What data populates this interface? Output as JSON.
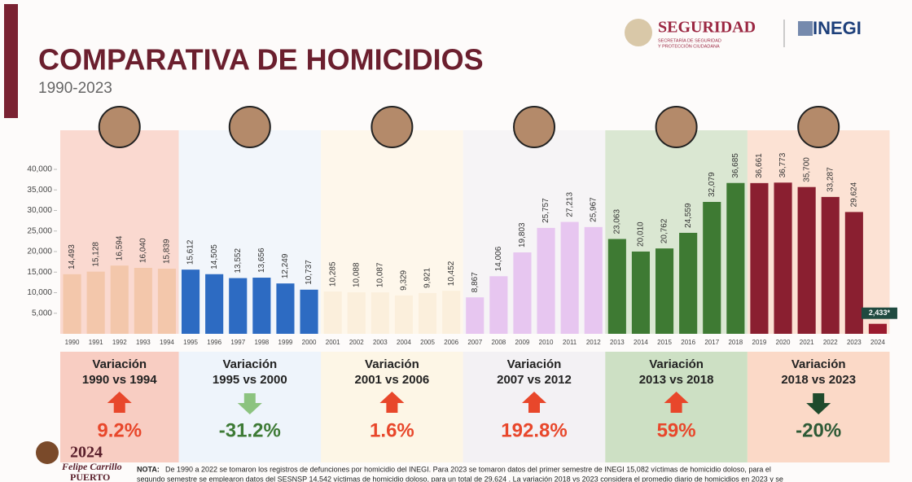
{
  "header": {
    "title": "COMPARATIVA DE HOMICIDIOS",
    "subtitle": "1990-2023",
    "logo_1": "SEGURIDAD",
    "logo_1_sub": [
      "SECRETARÍA DE SEGURIDAD",
      "Y PROTECCIÓN CIUDADANA"
    ],
    "logo_2": "INEGI"
  },
  "chart_data": {
    "type": "bar",
    "categories": [
      "1990",
      "1991",
      "1992",
      "1993",
      "1994",
      "1995",
      "1996",
      "1997",
      "1998",
      "1999",
      "2000",
      "2001",
      "2002",
      "2003",
      "2004",
      "2005",
      "2006",
      "2007",
      "2008",
      "2009",
      "2010",
      "2011",
      "2012",
      "2013",
      "2014",
      "2015",
      "2016",
      "2017",
      "2018",
      "2019",
      "2020",
      "2021",
      "2022",
      "2023",
      "2024"
    ],
    "values": [
      14493,
      15128,
      16594,
      16040,
      15839,
      15612,
      14505,
      13552,
      13656,
      12249,
      10737,
      10285,
      10088,
      10087,
      9329,
      9921,
      10452,
      8867,
      14006,
      19803,
      25757,
      27213,
      25967,
      23063,
      20010,
      20762,
      24559,
      32079,
      36685,
      36661,
      36773,
      35700,
      33287,
      29624,
      2433
    ],
    "value_labels": [
      "14,493",
      "15,128",
      "16,594",
      "16,040",
      "15,839",
      "15,612",
      "14,505",
      "13,552",
      "13,656",
      "12,249",
      "10,737",
      "10,285",
      "10,088",
      "10,087",
      "9,329",
      "9,921",
      "10,452",
      "8,867",
      "14,006",
      "19,803",
      "25,757",
      "27,213",
      "25,967",
      "23,063",
      "20,010",
      "20,762",
      "24,559",
      "32,079",
      "36,685",
      "36,661",
      "36,773",
      "35,700",
      "33,287",
      "29,624",
      "2,433*"
    ],
    "colors": [
      "#f3c7ab",
      "#f3c7ab",
      "#f3c7ab",
      "#f3c7ab",
      "#f3c7ab",
      "#2d6bc2",
      "#2d6bc2",
      "#2d6bc2",
      "#2d6bc2",
      "#2d6bc2",
      "#2d6bc2",
      "#fbefdc",
      "#fbefdc",
      "#fbefdc",
      "#fbefdc",
      "#fbefdc",
      "#fbefdc",
      "#e7c6f0",
      "#e7c6f0",
      "#e7c6f0",
      "#e7c6f0",
      "#e7c6f0",
      "#e7c6f0",
      "#3e7a33",
      "#3e7a33",
      "#3e7a33",
      "#3e7a33",
      "#3e7a33",
      "#3e7a33",
      "#8a1f30",
      "#8a1f30",
      "#8a1f30",
      "#8a1f30",
      "#8a1f30",
      "#9b1b2e"
    ],
    "ylim": [
      0,
      40000
    ],
    "yticks": [
      {
        "value": 5000,
        "label": "5,000"
      },
      {
        "value": 10000,
        "label": "10,000"
      },
      {
        "value": 15000,
        "label": "15,000"
      },
      {
        "value": 20000,
        "label": "20,000"
      },
      {
        "value": 25000,
        "label": "25,000"
      },
      {
        "value": 30000,
        "label": "30,000"
      },
      {
        "value": 35000,
        "label": "35,000"
      },
      {
        "value": 40000,
        "label": "40,000"
      }
    ],
    "grid": false
  },
  "periods": [
    {
      "heading": "Variación",
      "range": "1990 vs 1994",
      "change": "9.2%",
      "direction": "up",
      "panel_color": "#f8cdc2",
      "arrow_color": "#e8472b",
      "change_color": "#e8472b"
    },
    {
      "heading": "Variación",
      "range": "1995 vs 2000",
      "change": "-31.2%",
      "direction": "down",
      "panel_color": "#eef4fb",
      "arrow_color": "#8cc37f",
      "change_color": "#3d7a35"
    },
    {
      "heading": "Variación",
      "range": "2001 vs 2006",
      "change": "1.6%",
      "direction": "up",
      "panel_color": "#fdf6e6",
      "arrow_color": "#e8472b",
      "change_color": "#e8472b"
    },
    {
      "heading": "Variación",
      "range": "2007 vs 2012",
      "change": "192.8%",
      "direction": "up",
      "panel_color": "#f3f1f4",
      "arrow_color": "#e8472b",
      "change_color": "#e8472b"
    },
    {
      "heading": "Variación",
      "range": "2013 vs 2018",
      "change": "59%",
      "direction": "up",
      "panel_color": "#cde0c4",
      "arrow_color": "#e8472b",
      "change_color": "#e8472b"
    },
    {
      "heading": "Variación",
      "range": "2018 vs 2023",
      "change": "-20%",
      "direction": "down",
      "panel_color": "#fbd9c7",
      "arrow_color": "#1f4a2c",
      "change_color": "#2e5a36"
    }
  ],
  "footer": {
    "logo_year": "2024",
    "logo_name": "Felipe Carrillo",
    "logo_name_2": "PUERTO",
    "note_label": "NOTA:",
    "note_lines": [
      "De 1990 a 2022 se tomaron los registros de defunciones por homicidio del INEGI. Para 2023 se tomaron datos del primer semestre de INEGI 15,082 víctimas de homicidio doloso, para el",
      "segundo semestre se emplearon datos del SESNSP 14,542 víctimas de homicidio doloso, para un total de 29,624 . La variación 2018 vs 2023 considera el promedio diario de homicidios en 2023 y se"
    ]
  }
}
